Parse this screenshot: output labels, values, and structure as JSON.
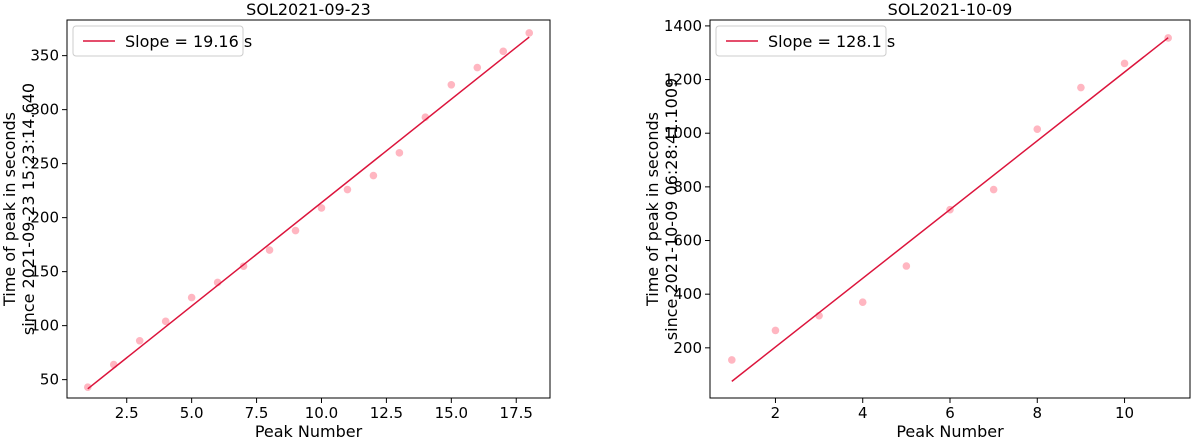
{
  "chart_data": [
    {
      "type": "scatter",
      "title": "SOL2021-09-23",
      "xlabel": "Peak Number",
      "ylabel_lines": [
        "Time of peak in seconds",
        "since 2021-09-23 15:23:14.640"
      ],
      "xlim": [
        0.2,
        18.8
      ],
      "ylim": [
        33,
        383
      ],
      "xticks": [
        2.5,
        5.0,
        7.5,
        10.0,
        12.5,
        15.0,
        17.5
      ],
      "xtick_labels": [
        "2.5",
        "5.0",
        "7.5",
        "10.0",
        "12.5",
        "15.0",
        "17.5"
      ],
      "yticks": [
        50,
        100,
        150,
        200,
        250,
        300,
        350
      ],
      "ytick_labels": [
        "50",
        "100",
        "150",
        "200",
        "250",
        "300",
        "350"
      ],
      "grid": false,
      "legend": {
        "placement": "top-left",
        "label": "Slope = 19.16 s"
      },
      "series": [
        {
          "kind": "points",
          "color": "#ffb6c1",
          "x": [
            1,
            2,
            3,
            4,
            5,
            6,
            7,
            8,
            9,
            10,
            11,
            12,
            13,
            14,
            15,
            16,
            17,
            18
          ],
          "y": [
            43,
            64,
            86,
            104,
            126,
            140,
            155,
            170,
            188,
            209,
            226,
            239,
            260,
            293,
            323,
            339,
            354,
            371
          ]
        },
        {
          "kind": "fit-line",
          "color": "#dc143c",
          "x": [
            1,
            18
          ],
          "y": [
            41.5,
            367.2
          ]
        }
      ]
    },
    {
      "type": "scatter",
      "title": "SOL2021-10-09",
      "xlabel": "Peak Number",
      "ylabel_lines": [
        "Time of peak in seconds",
        "since 2021-10-09 06:28:41.1009"
      ],
      "xlim": [
        0.5,
        11.5
      ],
      "ylim": [
        13,
        1422
      ],
      "xticks": [
        2,
        4,
        6,
        8,
        10
      ],
      "xtick_labels": [
        "2",
        "4",
        "6",
        "8",
        "10"
      ],
      "yticks": [
        200,
        400,
        600,
        800,
        1000,
        1200,
        1400
      ],
      "ytick_labels": [
        "200",
        "400",
        "600",
        "800",
        "1000",
        "1200",
        "1400"
      ],
      "grid": false,
      "legend": {
        "placement": "top-left",
        "label": "Slope = 128.1 s"
      },
      "series": [
        {
          "kind": "points",
          "color": "#ffb6c1",
          "x": [
            1,
            2,
            3,
            4,
            5,
            6,
            7,
            8,
            9,
            10,
            11
          ],
          "y": [
            155,
            265,
            320,
            370,
            505,
            715,
            790,
            1015,
            1170,
            1260,
            1355
          ]
        },
        {
          "kind": "fit-line",
          "color": "#dc143c",
          "x": [
            1,
            11
          ],
          "y": [
            75,
            1356
          ]
        }
      ]
    }
  ]
}
